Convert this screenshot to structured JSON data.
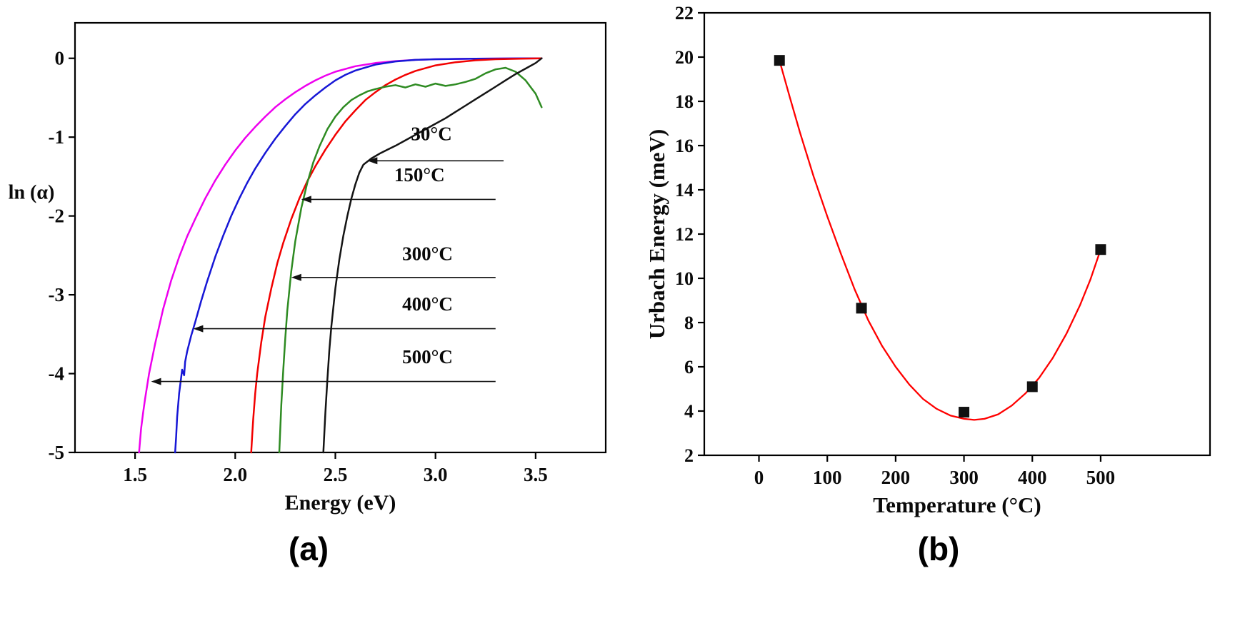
{
  "figure": {
    "caption_a": "(a)",
    "caption_b": "(b)"
  },
  "chart_data": [
    {
      "id": "a",
      "type": "line",
      "title": "",
      "xlabel": "Energy (eV)",
      "ylabel": "ln (α)",
      "xlim": [
        1.2,
        3.85
      ],
      "ylim": [
        -5,
        0.45
      ],
      "grid": false,
      "xticks": [
        1.5,
        2.0,
        2.5,
        3.0,
        3.5
      ],
      "xtick_labels": [
        "1.5",
        "2.0",
        "2.5",
        "3.0",
        "3.5"
      ],
      "yticks": [
        0,
        -1,
        -2,
        -3,
        -4,
        -5
      ],
      "ytick_labels": [
        "0",
        "-1",
        "-2",
        "-3",
        "-4",
        "-5"
      ],
      "series": [
        {
          "name": "500°C",
          "color": "#ee00ee",
          "x": [
            1.52,
            1.525,
            1.53,
            1.54,
            1.55,
            1.57,
            1.6,
            1.64,
            1.68,
            1.72,
            1.76,
            1.8,
            1.85,
            1.9,
            1.95,
            2.0,
            2.05,
            2.1,
            2.15,
            2.2,
            2.25,
            2.3,
            2.35,
            2.4,
            2.45,
            2.5,
            2.6,
            2.7,
            2.8,
            2.9,
            3.0,
            3.2,
            3.4,
            3.53
          ],
          "y": [
            -5.0,
            -4.85,
            -4.7,
            -4.5,
            -4.32,
            -4.0,
            -3.62,
            -3.18,
            -2.82,
            -2.52,
            -2.26,
            -2.04,
            -1.78,
            -1.55,
            -1.35,
            -1.17,
            -1.01,
            -0.87,
            -0.74,
            -0.62,
            -0.52,
            -0.43,
            -0.35,
            -0.28,
            -0.22,
            -0.17,
            -0.1,
            -0.06,
            -0.035,
            -0.02,
            -0.012,
            -0.005,
            -0.002,
            0.0
          ]
        },
        {
          "name": "400°C",
          "color": "#1717d6",
          "x": [
            1.7,
            1.705,
            1.71,
            1.72,
            1.73,
            1.735,
            1.745,
            1.75,
            1.76,
            1.78,
            1.8,
            1.83,
            1.86,
            1.9,
            1.94,
            1.98,
            2.02,
            2.06,
            2.1,
            2.15,
            2.2,
            2.25,
            2.3,
            2.35,
            2.4,
            2.45,
            2.5,
            2.55,
            2.6,
            2.7,
            2.8,
            2.9,
            3.0,
            3.2,
            3.4,
            3.53
          ],
          "y": [
            -5.0,
            -4.8,
            -4.55,
            -4.25,
            -4.05,
            -3.95,
            -4.02,
            -3.85,
            -3.72,
            -3.52,
            -3.35,
            -3.08,
            -2.83,
            -2.52,
            -2.25,
            -2.0,
            -1.78,
            -1.58,
            -1.4,
            -1.2,
            -1.02,
            -0.86,
            -0.71,
            -0.58,
            -0.47,
            -0.37,
            -0.28,
            -0.21,
            -0.155,
            -0.08,
            -0.04,
            -0.02,
            -0.012,
            -0.005,
            -0.002,
            0.0
          ]
        },
        {
          "name": "150°C",
          "color": "#f20000",
          "x": [
            2.08,
            2.085,
            2.09,
            2.1,
            2.11,
            2.13,
            2.15,
            2.18,
            2.21,
            2.24,
            2.28,
            2.32,
            2.36,
            2.4,
            2.45,
            2.5,
            2.55,
            2.6,
            2.65,
            2.7,
            2.75,
            2.8,
            2.85,
            2.9,
            3.0,
            3.1,
            3.2,
            3.3,
            3.45,
            3.53
          ],
          "y": [
            -5.0,
            -4.78,
            -4.58,
            -4.25,
            -4.0,
            -3.6,
            -3.28,
            -2.92,
            -2.6,
            -2.34,
            -2.04,
            -1.78,
            -1.56,
            -1.37,
            -1.16,
            -0.97,
            -0.8,
            -0.66,
            -0.53,
            -0.43,
            -0.34,
            -0.27,
            -0.21,
            -0.16,
            -0.09,
            -0.05,
            -0.025,
            -0.012,
            -0.004,
            0.0
          ]
        },
        {
          "name": "300°C",
          "color": "#2e8b22",
          "x": [
            2.22,
            2.225,
            2.23,
            2.24,
            2.25,
            2.26,
            2.28,
            2.3,
            2.33,
            2.36,
            2.39,
            2.42,
            2.46,
            2.5,
            2.54,
            2.58,
            2.62,
            2.66,
            2.7,
            2.75,
            2.8,
            2.85,
            2.9,
            2.95,
            3.0,
            3.05,
            3.1,
            3.15,
            3.2,
            3.25,
            3.3,
            3.35,
            3.4,
            3.45,
            3.5,
            3.53
          ],
          "y": [
            -5.0,
            -4.7,
            -4.4,
            -3.95,
            -3.55,
            -3.2,
            -2.7,
            -2.32,
            -1.9,
            -1.58,
            -1.32,
            -1.12,
            -0.9,
            -0.74,
            -0.62,
            -0.53,
            -0.47,
            -0.42,
            -0.39,
            -0.36,
            -0.34,
            -0.37,
            -0.33,
            -0.36,
            -0.32,
            -0.35,
            -0.33,
            -0.3,
            -0.26,
            -0.19,
            -0.14,
            -0.12,
            -0.17,
            -0.28,
            -0.45,
            -0.62
          ]
        },
        {
          "name": "30°C",
          "color": "#141414",
          "x": [
            2.44,
            2.445,
            2.45,
            2.46,
            2.47,
            2.48,
            2.5,
            2.52,
            2.54,
            2.56,
            2.58,
            2.6,
            2.62,
            2.64,
            2.68,
            2.72,
            2.76,
            2.8,
            2.85,
            2.9,
            2.95,
            3.0,
            3.05,
            3.1,
            3.15,
            3.2,
            3.25,
            3.3,
            3.35,
            3.4,
            3.45,
            3.5,
            3.53
          ],
          "y": [
            -5.0,
            -4.75,
            -4.5,
            -4.08,
            -3.7,
            -3.4,
            -2.92,
            -2.55,
            -2.25,
            -2.0,
            -1.78,
            -1.6,
            -1.45,
            -1.35,
            -1.27,
            -1.21,
            -1.16,
            -1.11,
            -1.04,
            -0.97,
            -0.9,
            -0.83,
            -0.76,
            -0.68,
            -0.6,
            -0.52,
            -0.44,
            -0.36,
            -0.28,
            -0.2,
            -0.13,
            -0.06,
            0.0
          ]
        }
      ],
      "annotations": [
        {
          "label": "30°C",
          "tip": [
            2.66,
            -1.3
          ],
          "line_end_x": 3.34,
          "label_pos": [
            2.98,
            -1.04
          ]
        },
        {
          "label": "150°C",
          "tip": [
            2.33,
            -1.79
          ],
          "line_end_x": 3.3,
          "label_pos": [
            2.92,
            -1.56
          ]
        },
        {
          "label": "300°C",
          "tip": [
            2.28,
            -2.78
          ],
          "line_end_x": 3.3,
          "label_pos": [
            2.96,
            -2.56
          ]
        },
        {
          "label": "400°C",
          "tip": [
            1.79,
            -3.43
          ],
          "line_end_x": 3.3,
          "label_pos": [
            2.96,
            -3.2
          ]
        },
        {
          "label": "500°C",
          "tip": [
            1.58,
            -4.1
          ],
          "line_end_x": 3.3,
          "label_pos": [
            2.96,
            -3.87
          ]
        }
      ]
    },
    {
      "id": "b",
      "type": "scatter",
      "title": "",
      "xlabel": "Temperature (°C)",
      "ylabel": "Urbach Energy (meV)",
      "xlim": [
        -80,
        660
      ],
      "ylim": [
        2,
        22
      ],
      "grid": false,
      "xticks": [
        0,
        100,
        200,
        300,
        400,
        500
      ],
      "xtick_labels": [
        "0",
        "100",
        "200",
        "300",
        "400",
        "500"
      ],
      "yticks": [
        2,
        4,
        6,
        8,
        10,
        12,
        14,
        16,
        18,
        20,
        22
      ],
      "ytick_labels": [
        "2",
        "4",
        "6",
        "8",
        "10",
        "12",
        "14",
        "16",
        "18",
        "20",
        "22"
      ],
      "points": {
        "marker": "square",
        "color": "#111111",
        "x": [
          30,
          150,
          300,
          400,
          500
        ],
        "y": [
          19.85,
          8.65,
          3.95,
          5.1,
          11.3
        ]
      },
      "fit": {
        "name": "fit-curve",
        "color": "#ff0000",
        "x": [
          30,
          45,
          60,
          80,
          100,
          120,
          140,
          160,
          180,
          200,
          220,
          240,
          260,
          280,
          300,
          315,
          330,
          350,
          370,
          390,
          410,
          430,
          450,
          470,
          485,
          500
        ],
        "y": [
          19.85,
          18.2,
          16.6,
          14.6,
          12.8,
          11.1,
          9.5,
          8.1,
          6.95,
          6.0,
          5.2,
          4.55,
          4.1,
          3.8,
          3.65,
          3.6,
          3.65,
          3.85,
          4.25,
          4.8,
          5.5,
          6.4,
          7.5,
          8.8,
          9.95,
          11.3
        ]
      }
    }
  ]
}
